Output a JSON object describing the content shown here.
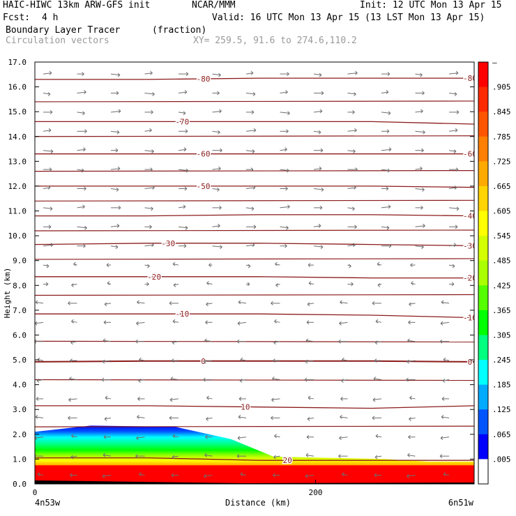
{
  "header": {
    "model": "HAIC-HIWC 13km ARW-GFS init",
    "org": "NCAR/MMM",
    "init": "Init: 12 UTC Mon 13 Apr 15",
    "fcst_label": "Fcst:",
    "fcst_value": "4 h",
    "valid": "Valid: 16 UTC Mon 13 Apr 15 (13 LST Mon 13 Apr 15)",
    "field": "Boundary Layer Tracer",
    "field_units": "(fraction)",
    "vectors": "Circulation vectors",
    "xy": "XY= 259.5, 91.6 to 274.6,110.2"
  },
  "colors": {
    "contour": "#8b1a1a",
    "vector": "#6e6e6e",
    "background": "#ffffff"
  },
  "chart_data": {
    "type": "heatmap",
    "xlabel": "Distance (km)",
    "ylabel": "Height (km)",
    "x_start_label": "4n53w",
    "x_end_label": "6n51w",
    "xlim": [
      0,
      313
    ],
    "ylim": [
      0,
      17
    ],
    "x_ticks": [
      0,
      200
    ],
    "y_ticks": [
      "0.0",
      "1.0",
      "2.0",
      "3.0",
      "4.0",
      "5.0",
      "6.0",
      "7.0",
      "8.0",
      "9.0",
      "10.0",
      "11.0",
      "12.0",
      "13.0",
      "14.0",
      "15.0",
      "16.0",
      "17.0"
    ],
    "colorbar_labels": [
      "–",
      ".905",
      ".845",
      ".785",
      ".725",
      ".665",
      ".605",
      ".545",
      ".485",
      ".425",
      ".365",
      ".305",
      ".245",
      ".185",
      ".125",
      ".065",
      ".005"
    ],
    "colorbar_colors": [
      "#ff0000",
      "#ff2a00",
      "#ff5500",
      "#ff7f00",
      "#ffaa00",
      "#ffd400",
      "#ffff00",
      "#d4ff00",
      "#aaff00",
      "#55ff00",
      "#00ff00",
      "#00ff7f",
      "#00ffff",
      "#00aaff",
      "#0055ff",
      "#0000ff",
      "#ffffff"
    ],
    "tracer_boundary_profile": {
      "x_km": [
        0,
        40,
        100,
        140,
        170,
        210,
        250,
        280,
        313
      ],
      "top_height_km": [
        2.1,
        2.35,
        2.3,
        1.8,
        1.1,
        1.05,
        1.0,
        0.9,
        0.9
      ]
    },
    "isotherm_labels": [
      "-80",
      "-80",
      "-70",
      "-60",
      "-60",
      "-50",
      "-40",
      "-30",
      "-30",
      "-20",
      "-20",
      "-10",
      "-10",
      "0",
      "0",
      "10",
      "20"
    ],
    "isotherms": [
      {
        "label": "-80",
        "x_km": [
          0,
          80,
          160,
          240,
          313
        ],
        "y_km": [
          16.3,
          16.3,
          16.35,
          16.35,
          16.35
        ]
      },
      {
        "label": "-70",
        "x_km": [
          0,
          80,
          160,
          240,
          313
        ],
        "y_km": [
          14.6,
          14.6,
          14.6,
          14.6,
          14.5
        ]
      },
      {
        "label": "-60",
        "x_km": [
          0,
          80,
          160,
          240,
          313
        ],
        "y_km": [
          13.3,
          13.3,
          13.3,
          13.3,
          13.3
        ]
      },
      {
        "label": "-50",
        "x_km": [
          0,
          80,
          160,
          240,
          313
        ],
        "y_km": [
          12.0,
          12.0,
          12.0,
          12.0,
          11.95
        ]
      },
      {
        "label": "-40",
        "x_km": [
          0,
          80,
          160,
          240,
          313
        ],
        "y_km": [
          10.8,
          10.8,
          10.85,
          10.85,
          10.8
        ]
      },
      {
        "label": "-30",
        "x_km": [
          0,
          80,
          160,
          240,
          313
        ],
        "y_km": [
          9.65,
          9.7,
          9.7,
          9.65,
          9.6
        ]
      },
      {
        "label": "-20",
        "x_km": [
          0,
          80,
          160,
          240,
          313
        ],
        "y_km": [
          8.35,
          8.35,
          8.35,
          8.3,
          8.3
        ]
      },
      {
        "label": "-10",
        "x_km": [
          0,
          80,
          160,
          240,
          313
        ],
        "y_km": [
          6.85,
          6.85,
          6.85,
          6.8,
          6.7
        ]
      },
      {
        "label": "0",
        "x_km": [
          0,
          80,
          160,
          240,
          313
        ],
        "y_km": [
          4.92,
          4.95,
          4.95,
          4.95,
          4.92
        ]
      },
      {
        "label": "10",
        "x_km": [
          0,
          80,
          160,
          240,
          313
        ],
        "y_km": [
          3.15,
          3.15,
          3.1,
          3.05,
          3.15
        ]
      },
      {
        "label": "20",
        "x_km": [
          0,
          80,
          160,
          240,
          313
        ],
        "y_km": [
          1.05,
          1.05,
          0.95,
          0.95,
          0.95
        ]
      }
    ],
    "extra_isotherm_heights_km": [
      15.4,
      14.0,
      12.6,
      11.4,
      10.2,
      9.05,
      7.6,
      5.75,
      4.2,
      2.3
    ],
    "wind": {
      "upper_direction": "eastward",
      "lower_direction": "westward",
      "reversal_height_km": 8.5
    }
  }
}
